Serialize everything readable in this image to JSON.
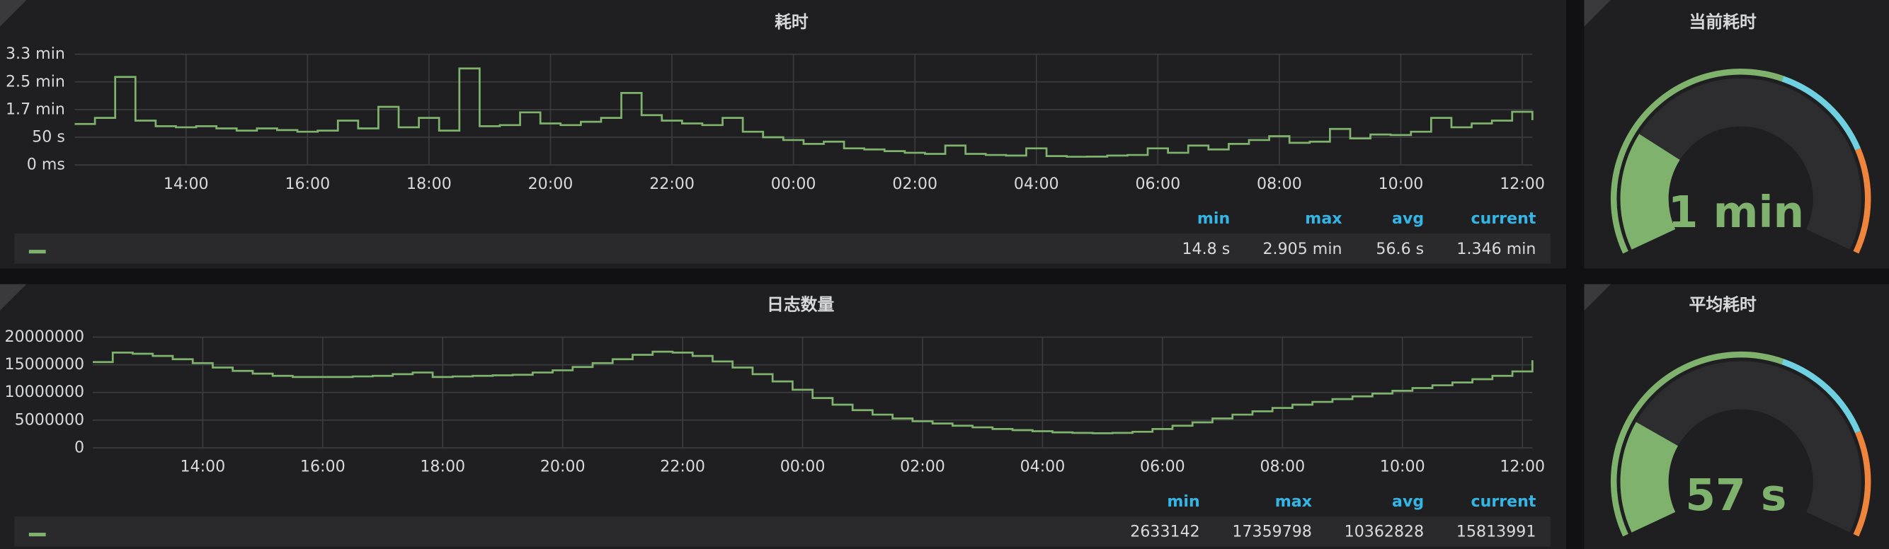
{
  "chart_data": [
    {
      "type": "line",
      "title": "耗时",
      "color": "#7eb26d",
      "grid": true,
      "x": [
        "12:10",
        "12:30",
        "12:50",
        "13:10",
        "13:30",
        "13:50",
        "14:10",
        "14:30",
        "14:50",
        "15:10",
        "15:30",
        "15:50",
        "16:10",
        "16:30",
        "16:50",
        "17:10",
        "17:30",
        "17:50",
        "18:10",
        "18:30",
        "18:50",
        "19:10",
        "19:30",
        "19:50",
        "20:10",
        "20:30",
        "20:50",
        "21:10",
        "21:30",
        "21:50",
        "22:10",
        "22:30",
        "22:50",
        "23:10",
        "23:30",
        "23:50",
        "00:10",
        "00:30",
        "00:50",
        "01:10",
        "01:30",
        "01:50",
        "02:10",
        "02:30",
        "02:50",
        "03:10",
        "03:30",
        "03:50",
        "04:10",
        "04:30",
        "04:50",
        "05:10",
        "05:30",
        "05:50",
        "06:10",
        "06:30",
        "06:50",
        "07:10",
        "07:30",
        "07:50",
        "08:10",
        "08:30",
        "08:50",
        "09:10",
        "09:30",
        "09:50",
        "10:10",
        "10:30",
        "10:50",
        "11:10",
        "11:30",
        "11:50",
        "12:10"
      ],
      "values": [
        74,
        85,
        159,
        80,
        70,
        68,
        70,
        66,
        62,
        66,
        63,
        60,
        62,
        80,
        66,
        105,
        68,
        85,
        62,
        174.3,
        70,
        72,
        95,
        75,
        72,
        78,
        85,
        130,
        90,
        80,
        75,
        72,
        85,
        60,
        50,
        45,
        38,
        42,
        30,
        28,
        25,
        22,
        20,
        35,
        20,
        18,
        17,
        30,
        16,
        14.8,
        15,
        17,
        18,
        30,
        22,
        35,
        28,
        38,
        45,
        52,
        40,
        42,
        65,
        48,
        55,
        54,
        60,
        85,
        68,
        75,
        80,
        96,
        80.8
      ],
      "xticks": [
        "14:00",
        "16:00",
        "18:00",
        "20:00",
        "22:00",
        "00:00",
        "02:00",
        "04:00",
        "06:00",
        "08:00",
        "10:00",
        "12:00"
      ],
      "ylim": [
        0,
        200
      ],
      "yticks": [
        {
          "value": 0,
          "label": "0 ms"
        },
        {
          "value": 50,
          "label": "50 s"
        },
        {
          "value": 100,
          "label": "1.7 min"
        },
        {
          "value": 150,
          "label": "2.5 min"
        },
        {
          "value": 200,
          "label": "3.3 min"
        }
      ],
      "legend": {
        "headers": [
          "min",
          "max",
          "avg",
          "current"
        ],
        "values": [
          "14.8 s",
          "2.905 min",
          "56.6 s",
          "1.346 min"
        ]
      }
    },
    {
      "type": "line",
      "title": "日志数量",
      "color": "#7eb26d",
      "grid": true,
      "x": [
        "12:10",
        "12:30",
        "12:50",
        "13:10",
        "13:30",
        "13:50",
        "14:10",
        "14:30",
        "14:50",
        "15:10",
        "15:30",
        "15:50",
        "16:10",
        "16:30",
        "16:50",
        "17:10",
        "17:30",
        "17:50",
        "18:10",
        "18:30",
        "18:50",
        "19:10",
        "19:30",
        "19:50",
        "20:10",
        "20:30",
        "20:50",
        "21:10",
        "21:30",
        "21:50",
        "22:10",
        "22:30",
        "22:50",
        "23:10",
        "23:30",
        "23:50",
        "00:10",
        "00:30",
        "00:50",
        "01:10",
        "01:30",
        "01:50",
        "02:10",
        "02:30",
        "02:50",
        "03:10",
        "03:30",
        "03:50",
        "04:10",
        "04:30",
        "04:50",
        "05:10",
        "05:30",
        "05:50",
        "06:10",
        "06:30",
        "06:50",
        "07:10",
        "07:30",
        "07:50",
        "08:10",
        "08:30",
        "08:50",
        "09:10",
        "09:30",
        "09:50",
        "10:10",
        "10:30",
        "10:50",
        "11:10",
        "11:30",
        "11:50",
        "12:10"
      ],
      "values": [
        15500000,
        17200000,
        17000000,
        16600000,
        16000000,
        15300000,
        14500000,
        13900000,
        13400000,
        13000000,
        12800000,
        12800000,
        12800000,
        12900000,
        13000000,
        13300000,
        13600000,
        12800000,
        12900000,
        13000000,
        13100000,
        13200000,
        13600000,
        14000000,
        14600000,
        15300000,
        16000000,
        16800000,
        17359798,
        17200000,
        16600000,
        15600000,
        14500000,
        13300000,
        12000000,
        10500000,
        9000000,
        7800000,
        6800000,
        6000000,
        5300000,
        4800000,
        4400000,
        4000000,
        3700000,
        3400000,
        3200000,
        3000000,
        2800000,
        2700000,
        2633142,
        2700000,
        2900000,
        3400000,
        4000000,
        4600000,
        5300000,
        6000000,
        6600000,
        7200000,
        7800000,
        8300000,
        8800000,
        9300000,
        9800000,
        10300000,
        10800000,
        11300000,
        11800000,
        12400000,
        13000000,
        13800000,
        15813991
      ],
      "xticks": [
        "14:00",
        "16:00",
        "18:00",
        "20:00",
        "22:00",
        "00:00",
        "02:00",
        "04:00",
        "06:00",
        "08:00",
        "10:00",
        "12:00"
      ],
      "ylim": [
        0,
        20000000
      ],
      "yticks": [
        0,
        5000000,
        10000000,
        15000000,
        20000000
      ],
      "legend": {
        "headers": [
          "min",
          "max",
          "avg",
          "current"
        ],
        "values": [
          2633142,
          17359798,
          10362828,
          15813991
        ]
      }
    },
    {
      "type": "gauge",
      "title": "当前耗时",
      "values": [
        60
      ],
      "value_labels": [
        "1 min"
      ],
      "min": 0,
      "max": 240,
      "color": "#7eb26d",
      "thresholds": [
        {
          "value": 0,
          "color": "#7eb26d"
        },
        {
          "value": 140,
          "color": "#6ed0e0"
        },
        {
          "value": 190,
          "color": "#ef843c"
        }
      ]
    },
    {
      "type": "gauge",
      "title": "平均耗时",
      "values": [
        57
      ],
      "value_labels": [
        "57 s"
      ],
      "min": 0,
      "max": 240,
      "color": "#7eb26d",
      "thresholds": [
        {
          "value": 0,
          "color": "#7eb26d"
        },
        {
          "value": 140,
          "color": "#6ed0e0"
        },
        {
          "value": 190,
          "color": "#ef843c"
        }
      ]
    }
  ]
}
